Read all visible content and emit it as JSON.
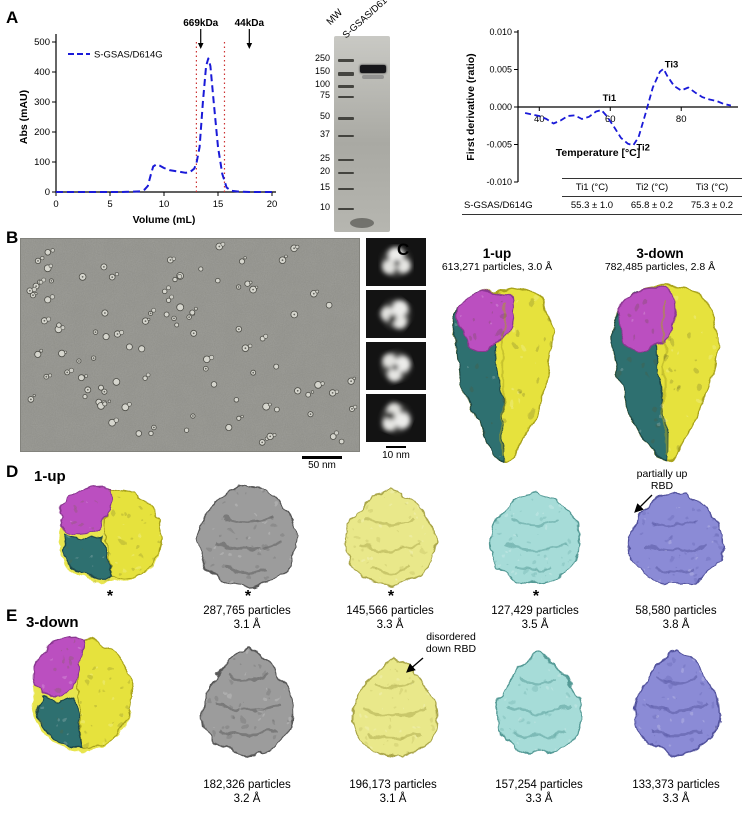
{
  "panelA": {
    "label": "A",
    "gel": {
      "mw_label": "MW",
      "lane_label": "S-GSAS/D614G",
      "ladder": [
        "250",
        "150",
        "100",
        "75",
        "50",
        "37",
        "25",
        "20",
        "15",
        "10"
      ]
    },
    "table": {
      "row_label": "S-GSAS/D614G",
      "headers": [
        "Ti1 (°C)",
        "Ti2 (°C)",
        "Ti3 (°C)"
      ],
      "values": [
        "55.3 ± 1.0",
        "65.8 ± 0.2",
        "75.3 ± 0.2"
      ]
    }
  },
  "panelB": {
    "label": "B",
    "scalebar_main": "50 nm",
    "scalebar_classes": "10 nm"
  },
  "panelC": {
    "label": "C",
    "maps": [
      {
        "title": "1-up",
        "subtitle": "613,271 particles, 3.0 Å"
      },
      {
        "title": "3-down",
        "subtitle": "782,485 particles, 2.8 Å"
      }
    ]
  },
  "panelD": {
    "label": "D",
    "title": "1-up",
    "annotation_line1": "partially up",
    "annotation_line2": "RBD",
    "maps": [
      {
        "caption1": "",
        "caption2": "",
        "asterisk": "*"
      },
      {
        "caption1": "287,765 particles",
        "caption2": "3.1 Å",
        "asterisk": "*"
      },
      {
        "caption1": "145,566 particles",
        "caption2": "3.3 Å",
        "asterisk": "*"
      },
      {
        "caption1": "127,429 particles",
        "caption2": "3.5 Å",
        "asterisk": "*"
      },
      {
        "caption1": "58,580 particles",
        "caption2": "3.8 Å",
        "asterisk": ""
      }
    ]
  },
  "panelE": {
    "label": "E",
    "title": "3-down",
    "annotation_line1": "disordered",
    "annotation_line2": "down RBD",
    "maps": [
      {
        "caption1": "",
        "caption2": ""
      },
      {
        "caption1": "182,326 particles",
        "caption2": "3.2 Å"
      },
      {
        "caption1": "196,173 particles",
        "caption2": "3.1 Å"
      },
      {
        "caption1": "157,254 particles",
        "caption2": "3.3 Å"
      },
      {
        "caption1": "133,373 particles",
        "caption2": "3.3 Å"
      }
    ]
  },
  "colors": {
    "curve_blue": "#1a1ad8",
    "vline_red": "#cc3333",
    "magenta": "#bb4fc0",
    "magenta_dark": "#8a3790",
    "yellow": "#e6e23c",
    "yellow_dark": "#a9a31d",
    "teal": "#2f6f70",
    "teal_dark": "#1c4748",
    "gray_map": "#9c9c9c",
    "gray_dark": "#585858",
    "pale_yellow": "#e9e88a",
    "pale_yellow_dark": "#aaa64a",
    "cyan": "#a6dcd8",
    "cyan_dark": "#549a96",
    "purple": "#8b8bd6",
    "purple_dark": "#53539e"
  },
  "chart_data": [
    {
      "type": "line",
      "name": "size-exclusion-chromatogram",
      "title": "",
      "xlabel": "Volume (mL)",
      "ylabel": "Abs (mAU)",
      "xlim": [
        0,
        20
      ],
      "ylim": [
        0,
        500
      ],
      "xticks": [
        0,
        5,
        10,
        15,
        20
      ],
      "yticks": [
        0,
        100,
        200,
        300,
        400,
        500
      ],
      "legend": [
        {
          "label": "S-GSAS/D614G",
          "style": "dashed",
          "color": "#1a1ad8"
        }
      ],
      "annotations": [
        {
          "label": "669kDa",
          "x": 13.4
        },
        {
          "label": "44kDa",
          "x": 17.9
        }
      ],
      "vlines": {
        "x": [
          13.0,
          15.6
        ],
        "color": "#cc3333",
        "style": "dotted"
      },
      "series": [
        {
          "name": "S-GSAS/D614G",
          "color": "#1a1ad8",
          "dash": true,
          "x": [
            0,
            2,
            4,
            6,
            7,
            7.8,
            8.2,
            8.5,
            8.8,
            9,
            9.3,
            9.6,
            10,
            10.5,
            11,
            11.5,
            12,
            12.4,
            12.8,
            13,
            13.3,
            13.6,
            13.9,
            14.1,
            14.3,
            14.6,
            15,
            15.4,
            15.8,
            16.2,
            17,
            18,
            19,
            20
          ],
          "y": [
            0,
            0,
            0,
            0,
            1,
            2,
            8,
            20,
            60,
            85,
            92,
            88,
            80,
            73,
            70,
            67,
            64,
            66,
            78,
            95,
            150,
            300,
            420,
            445,
            420,
            300,
            150,
            60,
            15,
            4,
            1,
            0,
            0,
            0
          ]
        }
      ]
    },
    {
      "type": "line",
      "name": "thermal-denaturation-first-derivative",
      "title": "",
      "xlabel": "Temperature [°C]",
      "ylabel": "First derivative (ratio)",
      "xlim": [
        34,
        96
      ],
      "ylim": [
        -0.01,
        0.01
      ],
      "xticks": [
        40,
        60,
        80
      ],
      "yticks": [
        -0.01,
        -0.005,
        0,
        0.005,
        0.01
      ],
      "yticklabels": [
        "-0.010",
        "-0.005",
        "0.000",
        "0.005",
        "0.010"
      ],
      "annotations": [
        {
          "label": "Ti1",
          "x": 57,
          "y": 0.0008
        },
        {
          "label": "Ti2",
          "x": 66.5,
          "y": -0.0058
        },
        {
          "label": "Ti3",
          "x": 74.5,
          "y": 0.0053
        }
      ],
      "series": [
        {
          "name": "S-GSAS/D614G",
          "color": "#1a1ad8",
          "dash": true,
          "x": [
            36,
            38,
            40,
            42,
            44,
            46,
            48,
            50,
            52,
            54,
            56,
            57.5,
            59,
            61,
            63,
            65,
            66.5,
            68,
            70,
            72,
            74,
            75,
            76,
            78,
            80,
            82,
            84,
            86,
            88,
            90,
            92,
            94
          ],
          "y": [
            -0.0008,
            -0.001,
            -0.0012,
            -0.0016,
            -0.0022,
            -0.0018,
            -0.0012,
            -0.0011,
            -0.0016,
            -0.0013,
            -0.0006,
            -0.0004,
            -0.0012,
            -0.0026,
            -0.0041,
            -0.0049,
            -0.0051,
            -0.004,
            -0.0008,
            0.0026,
            0.0047,
            0.0051,
            0.0042,
            0.0028,
            0.0022,
            0.0026,
            0.0019,
            0.0013,
            0.001,
            0.0008,
            0.0004,
            0.0002
          ]
        }
      ],
      "table": {
        "row_label": "S-GSAS/D614G",
        "columns": [
          "Ti1 (°C)",
          "Ti2 (°C)",
          "Ti3 (°C)"
        ],
        "values": [
          55.3,
          65.8,
          75.3
        ],
        "errors": [
          1.0,
          0.2,
          0.2
        ]
      }
    }
  ]
}
